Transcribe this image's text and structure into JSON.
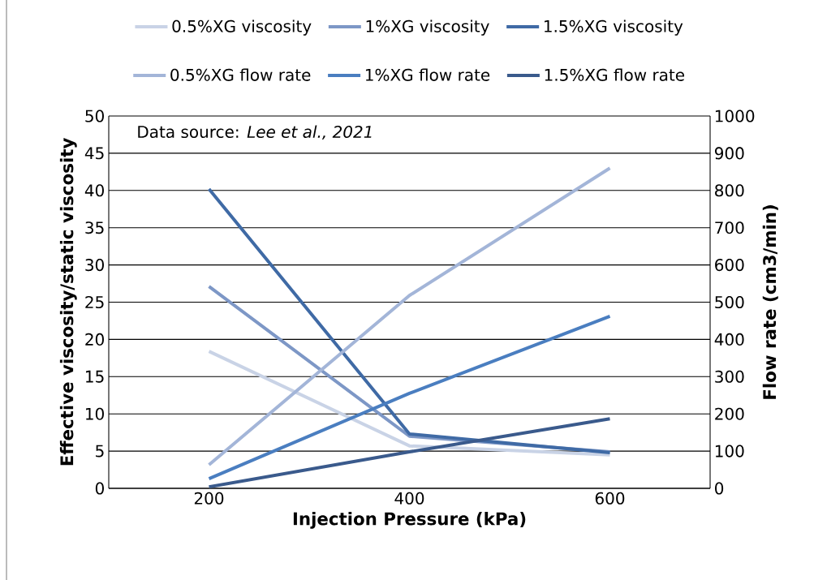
{
  "chart_data": {
    "type": "line",
    "xlabel": "Injection Pressure (kPa)",
    "ylabel": "Effective viscosity/static viscosity",
    "y2label": "Flow rate (cm3/min)",
    "categories": [
      "200",
      "400",
      "600"
    ],
    "series": [
      {
        "name": "0.5%XG viscosity",
        "color": "#c9d3e6",
        "values": [
          18.4,
          5.7,
          4.5
        ]
      },
      {
        "name": "1%XG viscosity",
        "color": "#7d97c6",
        "values": [
          27.1,
          7.0,
          4.9
        ]
      },
      {
        "name": "1.5%XG viscosity",
        "color": "#3f6aa5",
        "values": [
          40.2,
          7.3,
          4.8
        ]
      },
      {
        "name": "0.5%XG flow rate",
        "color": "#a3b5d8",
        "values": [
          63,
          518,
          860
        ],
        "axis": "y2"
      },
      {
        "name": "1%XG flow rate",
        "color": "#4a7ec0",
        "values": [
          26,
          255,
          462
        ],
        "axis": "y2"
      },
      {
        "name": "1.5%XG flow rate",
        "color": "#3a5a8c",
        "values": [
          4,
          98,
          187
        ],
        "axis": "y2"
      }
    ],
    "ylim": [
      0,
      50
    ],
    "yticks": [
      0,
      5,
      10,
      15,
      20,
      25,
      30,
      35,
      40,
      45,
      50
    ],
    "y2lim": [
      0,
      1000
    ],
    "y2ticks": [
      0,
      100,
      200,
      300,
      400,
      500,
      600,
      700,
      800,
      900,
      1000
    ],
    "annotations": [
      "Data source: *Lee et al., 2021*"
    ],
    "grid": "y",
    "legend": "top",
    "marker": "none",
    "line_style": "solid"
  }
}
